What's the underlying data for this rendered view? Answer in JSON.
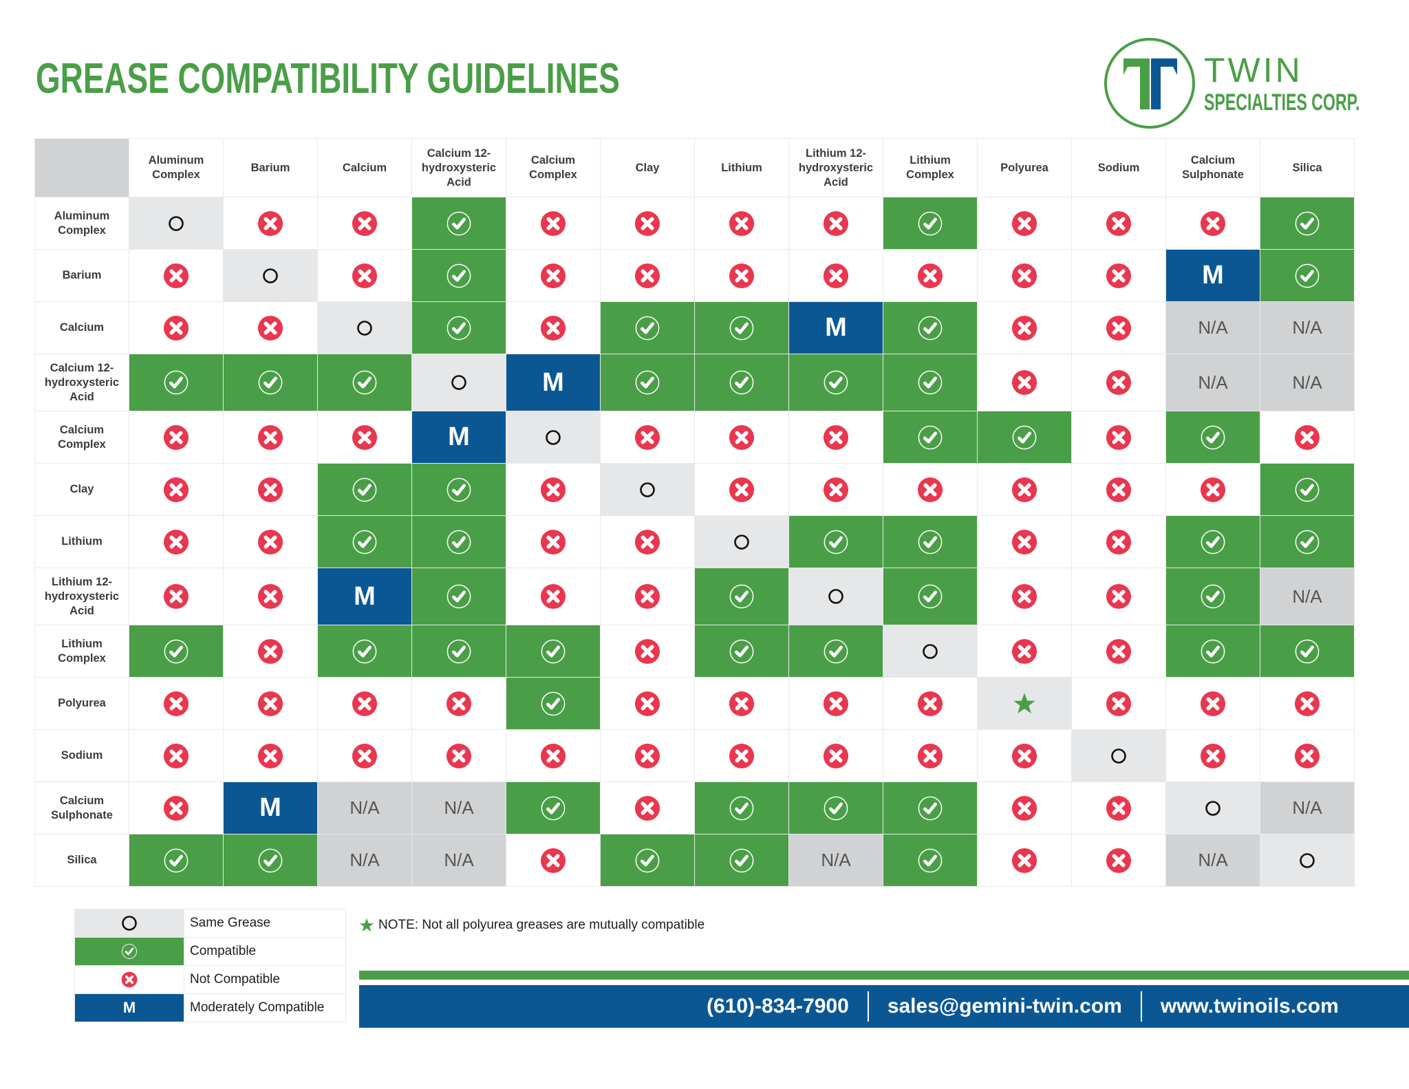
{
  "header": {
    "title": "GREASE COMPATIBILITY GUIDELINES",
    "logo": {
      "name": "TWIN",
      "subtitle": "SPECIALTIES CORP."
    }
  },
  "colors": {
    "compatible": "#4a9e47",
    "not_compatible": "#e8374f",
    "moderately": "#0b5794",
    "same": "#e6e7e8",
    "na": "#d0d2d4"
  },
  "grid": {
    "columns": [
      "Aluminum Complex",
      "Barium",
      "Calcium",
      "Calcium 12-hydroxysteric Acid",
      "Calcium Complex",
      "Clay",
      "Lithium",
      "Lithium 12-hydroxysteric Acid",
      "Lithium Complex",
      "Polyurea",
      "Sodium",
      "Calcium Sulphonate",
      "Silica"
    ],
    "rows": [
      {
        "label": "Aluminum Complex",
        "cells": [
          "S",
          "X",
          "X",
          "C",
          "X",
          "X",
          "X",
          "X",
          "C",
          "X",
          "X",
          "X",
          "C"
        ]
      },
      {
        "label": "Barium",
        "cells": [
          "X",
          "S",
          "X",
          "C",
          "X",
          "X",
          "X",
          "X",
          "X",
          "X",
          "X",
          "M",
          "C"
        ]
      },
      {
        "label": "Calcium",
        "cells": [
          "X",
          "X",
          "S",
          "C",
          "X",
          "C",
          "C",
          "M",
          "C",
          "X",
          "X",
          "N/A",
          "N/A"
        ]
      },
      {
        "label": "Calcium 12-hydroxysteric Acid",
        "cells": [
          "C",
          "C",
          "C",
          "S",
          "M",
          "C",
          "C",
          "C",
          "C",
          "X",
          "X",
          "N/A",
          "N/A"
        ]
      },
      {
        "label": "Calcium Complex",
        "cells": [
          "X",
          "X",
          "X",
          "M",
          "S",
          "X",
          "X",
          "X",
          "C",
          "C",
          "X",
          "C",
          "X"
        ]
      },
      {
        "label": "Clay",
        "cells": [
          "X",
          "X",
          "C",
          "C",
          "X",
          "S",
          "X",
          "X",
          "X",
          "X",
          "X",
          "X",
          "C"
        ]
      },
      {
        "label": "Lithium",
        "cells": [
          "X",
          "X",
          "C",
          "C",
          "X",
          "X",
          "S",
          "C",
          "C",
          "X",
          "X",
          "C",
          "C"
        ]
      },
      {
        "label": "Lithium 12-hydroxysteric Acid",
        "cells": [
          "X",
          "X",
          "M",
          "C",
          "X",
          "X",
          "C",
          "S",
          "C",
          "X",
          "X",
          "C",
          "N/A"
        ]
      },
      {
        "label": "Lithium Complex",
        "cells": [
          "C",
          "X",
          "C",
          "C",
          "C",
          "X",
          "C",
          "C",
          "S",
          "X",
          "X",
          "C",
          "C"
        ]
      },
      {
        "label": "Polyurea",
        "cells": [
          "X",
          "X",
          "X",
          "X",
          "C",
          "X",
          "X",
          "X",
          "X",
          "P",
          "X",
          "X",
          "X"
        ]
      },
      {
        "label": "Sodium",
        "cells": [
          "X",
          "X",
          "X",
          "X",
          "X",
          "X",
          "X",
          "X",
          "X",
          "X",
          "S",
          "X",
          "X"
        ]
      },
      {
        "label": "Calcium Sulphonate",
        "cells": [
          "X",
          "M",
          "N/A",
          "N/A",
          "C",
          "X",
          "C",
          "C",
          "C",
          "X",
          "X",
          "S",
          "N/A"
        ]
      },
      {
        "label": "Silica",
        "cells": [
          "C",
          "C",
          "N/A",
          "N/A",
          "X",
          "C",
          "C",
          "N/A",
          "C",
          "X",
          "X",
          "N/A",
          "S"
        ]
      }
    ],
    "symbols": {
      "M": "M",
      "N/A": "N/A"
    }
  },
  "legend": {
    "items": [
      {
        "key": "S",
        "label": "Same Grease"
      },
      {
        "key": "C",
        "label": "Compatible"
      },
      {
        "key": "X",
        "label": "Not Compatible"
      },
      {
        "key": "M",
        "label": "Moderately Compatible"
      }
    ]
  },
  "note": {
    "text": "NOTE: Not all polyurea greases are mutually compatible"
  },
  "footer": {
    "phone": "(610)-834-7900",
    "email": "sales@gemini-twin.com",
    "website": "www.twinoils.com"
  }
}
